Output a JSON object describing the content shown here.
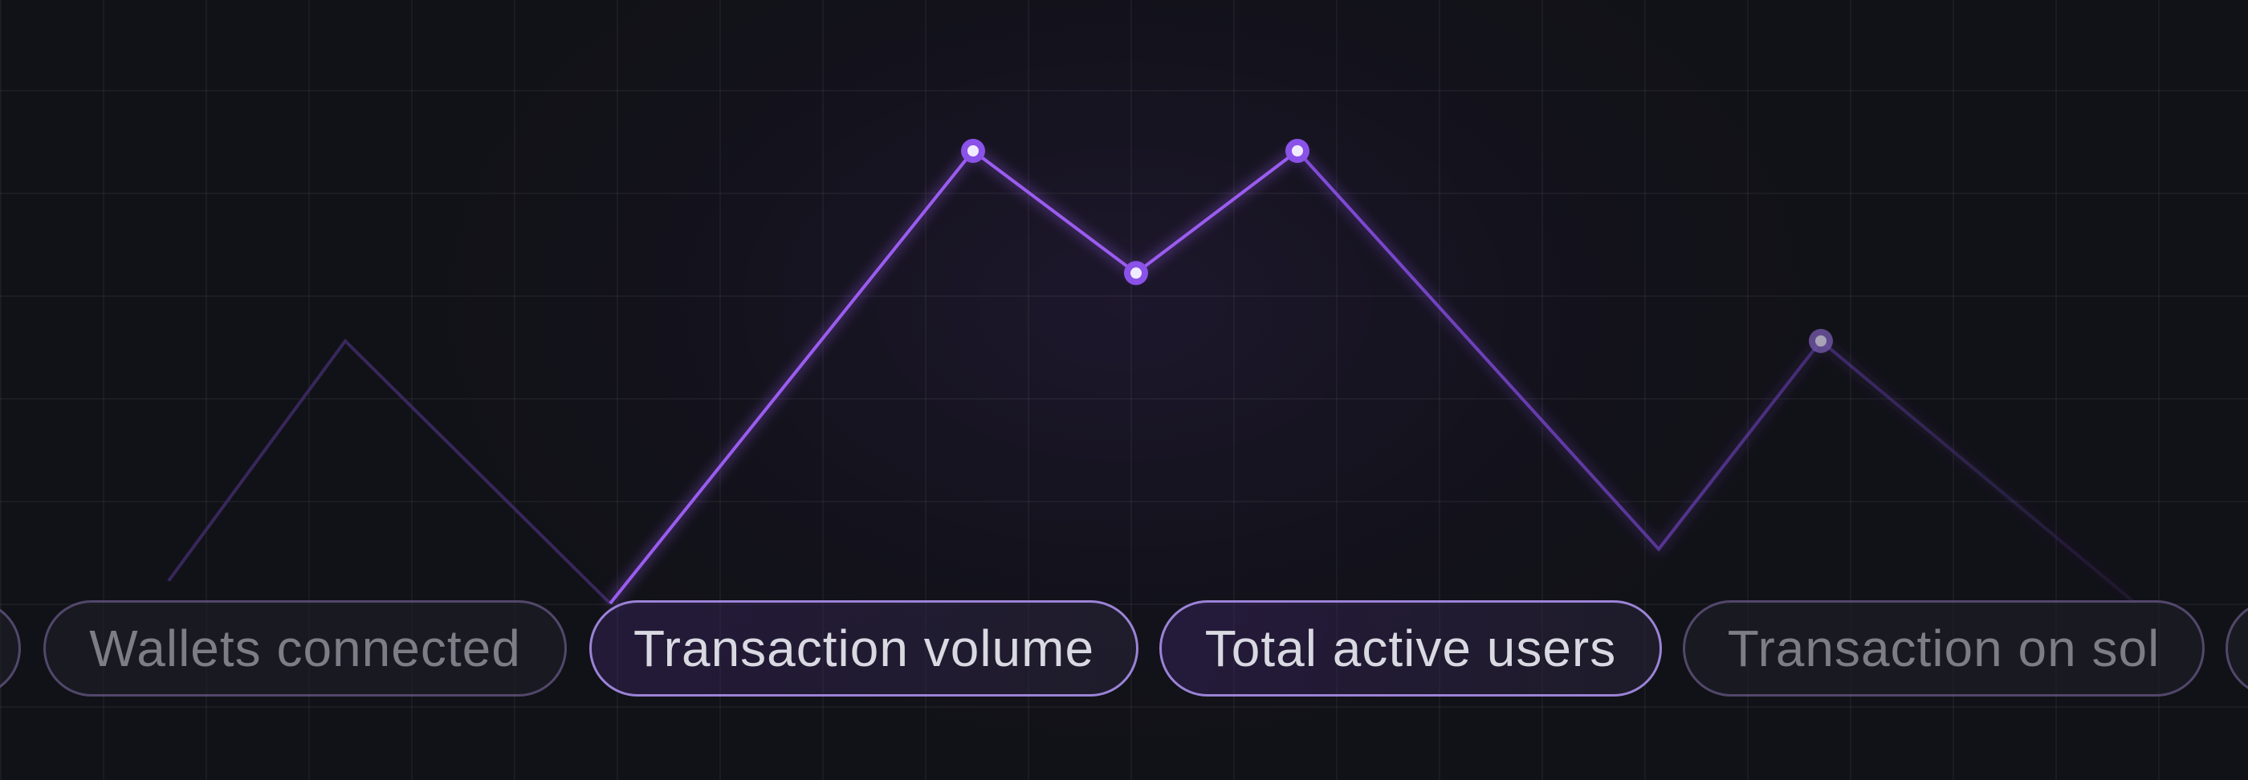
{
  "colors": {
    "accent": "#9b5cf0",
    "accent_glow": "#7c3aed",
    "dim_line": "#3d2a63",
    "background": "#111217"
  },
  "chart_data": {
    "type": "line",
    "series": [
      {
        "values": [
          5,
          58,
          0
        ],
        "style": "dim"
      },
      {
        "values": [
          0,
          100,
          73,
          100
        ],
        "style": "bright"
      },
      {
        "values": [
          100,
          12,
          58,
          0
        ],
        "style": "fading"
      }
    ]
  },
  "tabs": [
    {
      "label": "",
      "state": "edge"
    },
    {
      "label": "Wallets connected",
      "state": "inactive"
    },
    {
      "label": "Transaction volume",
      "state": "active"
    },
    {
      "label": "Total active users",
      "state": "active"
    },
    {
      "label": "Transaction on sol",
      "state": "partial"
    },
    {
      "label": "",
      "state": "edge"
    }
  ]
}
